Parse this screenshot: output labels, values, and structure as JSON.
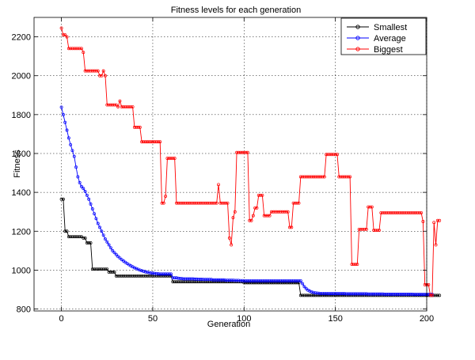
{
  "chart_data": {
    "type": "line",
    "title": "Fitness levels for each generation",
    "xlabel": "Generation",
    "ylabel": "Fitness",
    "xlim": [
      -15,
      200
    ],
    "ylim": [
      790,
      2300
    ],
    "xticks": [
      0,
      50,
      100,
      150,
      200
    ],
    "yticks": [
      800,
      1000,
      1200,
      1400,
      1600,
      1800,
      2000,
      2200
    ],
    "grid": true,
    "legend_position": "top-right",
    "series": [
      {
        "name": "Smallest",
        "color": "#000000",
        "marker": "circle",
        "x_start": 0,
        "values": [
          1365,
          1365,
          1200,
          1200,
          1172,
          1172,
          1172,
          1172,
          1172,
          1172,
          1172,
          1172,
          1165,
          1165,
          1140,
          1140,
          1140,
          1005,
          1005,
          1005,
          1005,
          1005,
          1005,
          1005,
          1005,
          1005,
          990,
          990,
          990,
          990,
          970,
          970,
          970,
          970,
          970,
          970,
          970,
          970,
          970,
          970,
          970,
          970,
          970,
          970,
          970,
          970,
          970,
          970,
          970,
          970,
          970,
          970,
          970,
          970,
          970,
          970,
          970,
          970,
          970,
          970,
          970,
          940,
          940,
          940,
          940,
          940,
          940,
          940,
          940,
          940,
          940,
          940,
          940,
          940,
          940,
          940,
          940,
          940,
          940,
          940,
          940,
          940,
          940,
          940,
          940,
          940,
          940,
          940,
          940,
          940,
          940,
          940,
          940,
          940,
          940,
          940,
          940,
          940,
          940,
          940,
          935,
          935,
          935,
          935,
          935,
          935,
          935,
          935,
          935,
          935,
          935,
          935,
          935,
          935,
          935,
          935,
          935,
          935,
          935,
          935,
          935,
          935,
          935,
          935,
          935,
          935,
          935,
          935,
          935,
          935,
          935,
          870,
          870,
          870,
          870,
          870,
          870,
          870,
          870,
          870,
          870,
          870,
          870,
          870,
          870,
          870,
          870,
          870,
          870,
          870,
          870,
          870,
          870,
          870,
          870,
          870,
          870,
          870,
          870,
          870,
          870,
          870,
          870,
          870,
          870,
          870,
          870,
          870,
          870,
          870,
          870,
          870,
          870,
          870,
          870,
          870,
          870,
          870,
          870,
          870,
          870,
          870,
          870,
          870,
          870,
          870,
          870,
          870,
          870,
          870,
          870,
          870,
          870,
          870,
          870,
          870,
          870,
          870,
          870,
          870,
          870,
          870,
          870,
          870,
          870,
          870,
          870,
          870
        ]
      },
      {
        "name": "Average",
        "color": "#0000ff",
        "marker": "circle",
        "x_start": 0,
        "values": [
          1838,
          1800,
          1760,
          1720,
          1680,
          1645,
          1615,
          1585,
          1530,
          1480,
          1450,
          1430,
          1420,
          1405,
          1385,
          1365,
          1340,
          1315,
          1290,
          1265,
          1240,
          1220,
          1200,
          1180,
          1160,
          1145,
          1130,
          1115,
          1100,
          1090,
          1080,
          1070,
          1062,
          1054,
          1047,
          1040,
          1034,
          1028,
          1022,
          1017,
          1012,
          1008,
          1004,
          1000,
          997,
          994,
          991,
          989,
          987,
          985,
          984,
          983,
          982,
          981,
          980,
          980,
          980,
          980,
          980,
          980,
          980,
          960,
          960,
          960,
          958,
          957,
          956,
          955,
          955,
          955,
          955,
          955,
          955,
          954,
          954,
          953,
          953,
          953,
          952,
          952,
          952,
          952,
          952,
          950,
          950,
          950,
          950,
          950,
          950,
          950,
          948,
          948,
          948,
          948,
          948,
          947,
          947,
          947,
          946,
          946,
          945,
          945,
          945,
          945,
          945,
          945,
          945,
          945,
          945,
          945,
          945,
          945,
          945,
          945,
          945,
          945,
          945,
          945,
          945,
          945,
          945,
          945,
          945,
          945,
          945,
          945,
          945,
          945,
          945,
          945,
          945,
          945,
          930,
          915,
          905,
          897,
          892,
          888,
          885,
          883,
          882,
          881,
          880,
          880,
          880,
          880,
          879,
          879,
          879,
          879,
          879,
          879,
          879,
          879,
          879,
          879,
          878,
          878,
          878,
          878,
          878,
          878,
          878,
          878,
          878,
          878,
          878,
          878,
          877,
          877,
          877,
          877,
          877,
          877,
          877,
          877,
          877,
          876,
          876,
          876,
          876,
          876,
          876,
          876,
          876,
          876,
          876,
          876,
          876,
          876,
          876,
          876,
          876,
          875,
          875,
          875,
          875,
          875,
          875,
          875,
          875,
          875,
          875,
          875
        ]
      },
      {
        "name": "Biggest",
        "color": "#ff0000",
        "marker": "circle",
        "x_start": 0,
        "values": [
          2245,
          2210,
          2210,
          2200,
          2140,
          2140,
          2140,
          2140,
          2140,
          2140,
          2140,
          2140,
          2120,
          2025,
          2025,
          2025,
          2025,
          2025,
          2025,
          2025,
          2025,
          2000,
          2000,
          2025,
          2000,
          1850,
          1850,
          1850,
          1850,
          1850,
          1850,
          1840,
          1870,
          1840,
          1840,
          1840,
          1840,
          1840,
          1840,
          1840,
          1735,
          1735,
          1735,
          1735,
          1660,
          1660,
          1660,
          1660,
          1660,
          1660,
          1660,
          1660,
          1660,
          1660,
          1660,
          1345,
          1345,
          1380,
          1575,
          1575,
          1575,
          1575,
          1575,
          1345,
          1345,
          1345,
          1345,
          1345,
          1345,
          1345,
          1345,
          1345,
          1345,
          1345,
          1345,
          1345,
          1345,
          1345,
          1345,
          1345,
          1345,
          1345,
          1345,
          1345,
          1345,
          1345,
          1440,
          1345,
          1345,
          1345,
          1345,
          1345,
          1165,
          1130,
          1270,
          1300,
          1605,
          1605,
          1605,
          1605,
          1605,
          1605,
          1605,
          1255,
          1255,
          1280,
          1320,
          1320,
          1385,
          1385,
          1385,
          1280,
          1280,
          1280,
          1280,
          1300,
          1300,
          1300,
          1300,
          1300,
          1300,
          1300,
          1300,
          1300,
          1300,
          1220,
          1220,
          1345,
          1345,
          1345,
          1345,
          1480,
          1480,
          1480,
          1480,
          1480,
          1480,
          1480,
          1480,
          1480,
          1480,
          1480,
          1480,
          1480,
          1480,
          1595,
          1595,
          1595,
          1595,
          1595,
          1595,
          1595,
          1480,
          1480,
          1480,
          1480,
          1480,
          1480,
          1480,
          1030,
          1030,
          1030,
          1030,
          1210,
          1210,
          1210,
          1210,
          1210,
          1325,
          1325,
          1325,
          1205,
          1205,
          1205,
          1205,
          1295,
          1295,
          1295,
          1295,
          1295,
          1295,
          1295,
          1295,
          1295,
          1295,
          1295,
          1295,
          1295,
          1295,
          1295,
          1295,
          1295,
          1295,
          1295,
          1295,
          1295,
          1295,
          1295,
          1250,
          925,
          925,
          925,
          870,
          870,
          1245,
          1130,
          1255,
          1255
        ]
      }
    ]
  }
}
